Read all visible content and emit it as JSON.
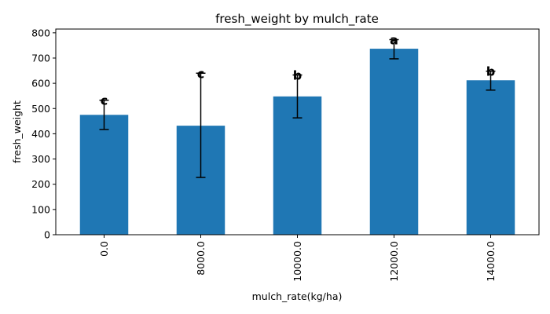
{
  "chart_data": {
    "type": "bar",
    "title": "fresh_weight by mulch_rate",
    "xlabel": "mulch_rate(kg/ha)",
    "ylabel": "fresh_weight",
    "categories": [
      "0.0",
      "8000.0",
      "10000.0",
      "12000.0",
      "14000.0"
    ],
    "values": [
      475,
      432,
      548,
      737,
      612
    ],
    "error_low": [
      417,
      227,
      463,
      697,
      573
    ],
    "error_high": [
      533,
      640,
      633,
      773,
      648
    ],
    "group_labels": [
      "c",
      "c",
      "b",
      "a",
      "b"
    ],
    "ylim": [
      0,
      815
    ],
    "yticks": [
      0,
      100,
      200,
      300,
      400,
      500,
      600,
      700,
      800
    ],
    "bar_color": "#1f77b4",
    "grid": false,
    "legend": "none"
  }
}
